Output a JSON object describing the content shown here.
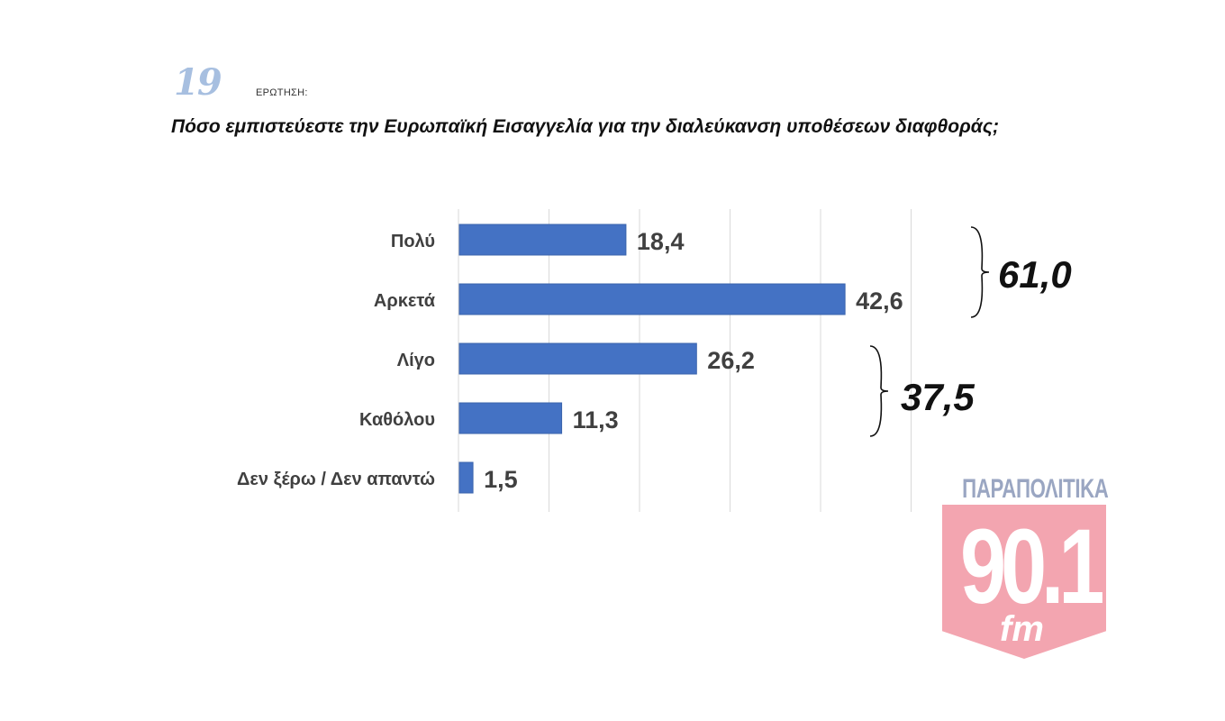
{
  "header": {
    "question_number": "19",
    "question_label": "ΕΡΩΤΗΣΗ:",
    "question_text": "Πόσο εμπιστεύεστε την Ευρωπαϊκή Εισαγγελία για την διαλεύκανση υποθέσεων διαφθοράς;"
  },
  "chart_data": {
    "type": "bar",
    "orientation": "horizontal",
    "categories": [
      "Πολύ",
      "Αρκετά",
      "Λίγο",
      "Καθόλου",
      "Δεν ξέρω / Δεν απαντώ"
    ],
    "values": [
      18.4,
      42.6,
      26.2,
      11.3,
      1.5
    ],
    "value_labels": [
      "18,4",
      "42,6",
      "26,2",
      "11,3",
      "1,5"
    ],
    "xlim": [
      0,
      50
    ],
    "grid": true,
    "bar_color": "#4472c4",
    "groups": [
      {
        "categories": [
          "Πολύ",
          "Αρκετά"
        ],
        "total": 61.0,
        "total_label": "61,0"
      },
      {
        "categories": [
          "Λίγο",
          "Καθόλου"
        ],
        "total": 37.5,
        "total_label": "37,5"
      }
    ]
  },
  "logo": {
    "name": "ΠΑΡΑΠΟΛΙΤΙΚΑ",
    "frequency": "90.1",
    "band": "fm",
    "badge_color": "#f3a5b0",
    "name_color": "#9aa6c2"
  }
}
